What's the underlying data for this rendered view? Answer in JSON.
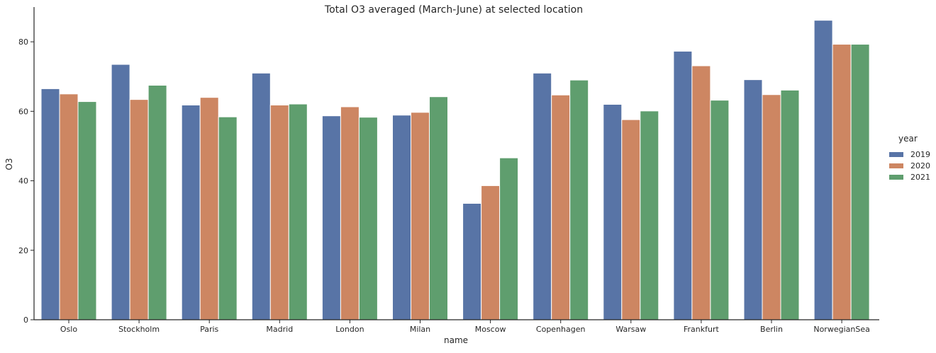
{
  "chart_data": {
    "type": "bar",
    "title": "Total O3 averaged (March-June) at selected location",
    "xlabel": "name",
    "ylabel": "O3",
    "categories": [
      "Oslo",
      "Stockholm",
      "Paris",
      "Madrid",
      "London",
      "Milan",
      "Moscow",
      "Copenhagen",
      "Warsaw",
      "Frankfurt",
      "Berlin",
      "NorwegianSea"
    ],
    "series": [
      {
        "name": "2019",
        "color": "#5874a6",
        "values": [
          66.5,
          73.5,
          61.8,
          71.0,
          58.7,
          58.9,
          33.5,
          71.0,
          62.0,
          77.3,
          69.1,
          86.2
        ]
      },
      {
        "name": "2020",
        "color": "#cd8662",
        "values": [
          65.0,
          63.4,
          64.0,
          61.8,
          61.3,
          59.7,
          38.6,
          64.7,
          57.6,
          73.1,
          64.8,
          79.3
        ]
      },
      {
        "name": "2021",
        "color": "#5f9e6e",
        "values": [
          62.8,
          67.5,
          58.4,
          62.1,
          58.3,
          64.2,
          46.6,
          69.0,
          60.1,
          63.2,
          66.1,
          79.3
        ]
      }
    ],
    "ylim": [
      0,
      90
    ],
    "yticks": [
      "0",
      "20",
      "40",
      "60",
      "80"
    ],
    "legend": {
      "title": "year",
      "placement": "right"
    },
    "grid": false
  }
}
